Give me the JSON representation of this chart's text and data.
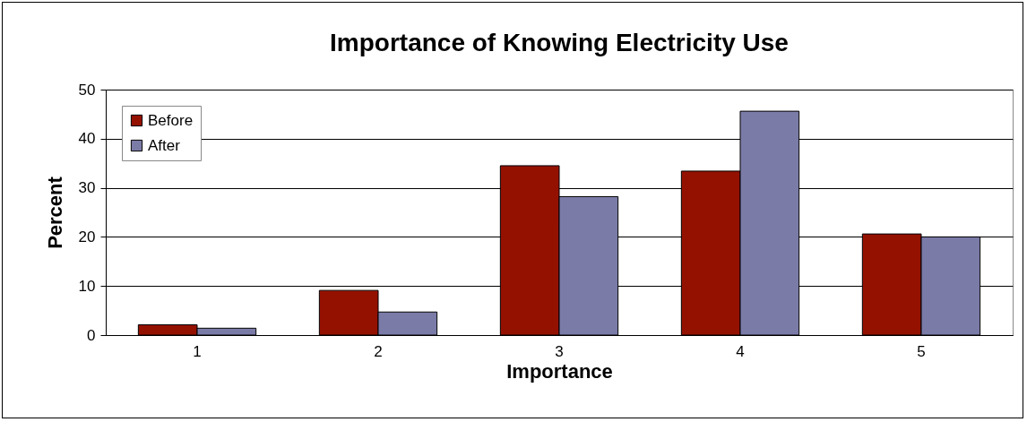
{
  "chart_data": {
    "type": "bar",
    "title": "Importance of Knowing Electricity Use",
    "xlabel": "Importance",
    "ylabel": "Percent",
    "categories": [
      "1",
      "2",
      "3",
      "4",
      "5"
    ],
    "series": [
      {
        "name": "Before",
        "color": "#941100",
        "values": [
          2.1,
          9.1,
          34.5,
          33.4,
          20.6
        ]
      },
      {
        "name": "After",
        "color": "#7b7ba8",
        "values": [
          1.4,
          4.7,
          28.2,
          45.6,
          20.0
        ]
      }
    ],
    "ylim": [
      0,
      50
    ],
    "yticks": [
      0,
      10,
      20,
      30,
      40,
      50
    ],
    "grid": "y",
    "legend": "top left"
  }
}
